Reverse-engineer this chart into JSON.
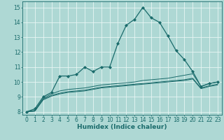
{
  "title": "",
  "xlabel": "Humidex (Indice chaleur)",
  "xlim": [
    -0.5,
    23.5
  ],
  "ylim": [
    7.8,
    15.4
  ],
  "yticks": [
    8,
    9,
    10,
    11,
    12,
    13,
    14,
    15
  ],
  "xticks": [
    0,
    1,
    2,
    3,
    4,
    5,
    6,
    7,
    8,
    9,
    10,
    11,
    12,
    13,
    14,
    15,
    16,
    17,
    18,
    19,
    20,
    21,
    22,
    23
  ],
  "bg_color": "#aed8d4",
  "line_color": "#1a6b6b",
  "grid_color": "#e8f5f4",
  "series": [
    [
      8.0,
      8.2,
      9.0,
      9.3,
      10.4,
      10.4,
      10.5,
      11.0,
      10.7,
      11.0,
      11.0,
      12.6,
      13.8,
      14.2,
      15.0,
      14.3,
      14.0,
      13.1,
      12.1,
      11.5,
      10.7,
      9.7,
      9.9,
      10.0
    ],
    [
      8.0,
      8.1,
      8.9,
      9.2,
      9.4,
      9.5,
      9.55,
      9.6,
      9.7,
      9.8,
      9.85,
      9.9,
      9.95,
      10.0,
      10.1,
      10.15,
      10.2,
      10.25,
      10.35,
      10.45,
      10.55,
      9.7,
      9.9,
      10.0
    ],
    [
      8.0,
      8.05,
      8.85,
      9.1,
      9.25,
      9.35,
      9.4,
      9.45,
      9.55,
      9.65,
      9.7,
      9.75,
      9.8,
      9.85,
      9.9,
      9.95,
      10.0,
      10.05,
      10.1,
      10.15,
      10.25,
      9.6,
      9.75,
      9.85
    ],
    [
      8.0,
      8.05,
      8.8,
      9.05,
      9.2,
      9.3,
      9.35,
      9.4,
      9.5,
      9.6,
      9.65,
      9.7,
      9.75,
      9.8,
      9.85,
      9.9,
      9.95,
      10.0,
      10.05,
      10.1,
      10.2,
      9.55,
      9.7,
      9.8
    ]
  ],
  "marker": "D",
  "marker_size": 2.0,
  "linewidth_main": 0.9,
  "linewidth_other": 0.7,
  "tick_labelsize": 5.5,
  "xlabel_fontsize": 6.5
}
